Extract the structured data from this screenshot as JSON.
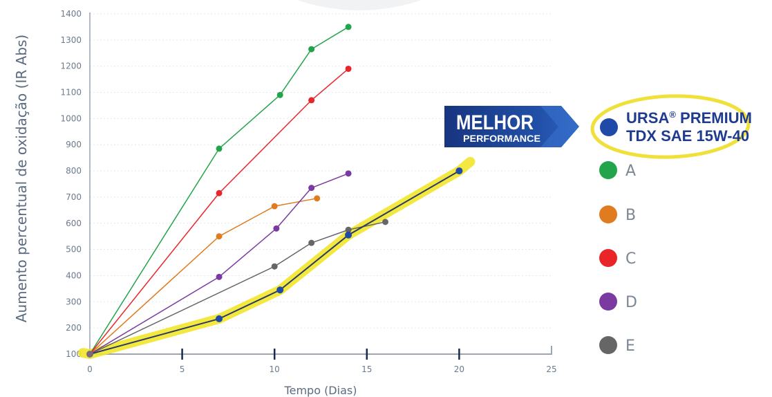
{
  "chart_data": {
    "type": "line",
    "xlabel": "Tempo (Dias)",
    "ylabel": "Aumento percentual de oxidação (IR Abs)",
    "xlim": [
      0,
      25
    ],
    "ylim": [
      100,
      1400
    ],
    "x_ticks": [
      "0",
      "5",
      "10",
      "15",
      "20",
      "25"
    ],
    "y_ticks": [
      "100",
      "200",
      "300",
      "400",
      "500",
      "600",
      "700",
      "800",
      "900",
      "1000",
      "1100",
      "1200",
      "1300",
      "1400"
    ],
    "grid": "horizontal-dotted",
    "legend_position": "right",
    "series": [
      {
        "name": "URSA® PREMIUM TDX SAE 15W-40",
        "color": "#1f4aa8",
        "highlight": "#f2e62a",
        "points": [
          [
            0,
            100
          ],
          [
            7,
            235
          ],
          [
            10.3,
            345
          ],
          [
            14,
            555
          ],
          [
            20,
            800
          ]
        ]
      },
      {
        "name": "A",
        "color": "#22a54a",
        "points": [
          [
            0,
            100
          ],
          [
            7,
            885
          ],
          [
            10.3,
            1090
          ],
          [
            12,
            1265
          ],
          [
            14,
            1350
          ]
        ]
      },
      {
        "name": "B",
        "color": "#e07b1f",
        "points": [
          [
            0,
            100
          ],
          [
            7,
            550
          ],
          [
            10,
            665
          ],
          [
            12.3,
            695
          ]
        ]
      },
      {
        "name": "C",
        "color": "#e8262a",
        "points": [
          [
            0,
            100
          ],
          [
            7,
            715
          ],
          [
            12,
            1070
          ],
          [
            14,
            1190
          ]
        ]
      },
      {
        "name": "D",
        "color": "#7b3aa0",
        "points": [
          [
            0,
            100
          ],
          [
            7,
            395
          ],
          [
            10.1,
            580
          ],
          [
            12,
            735
          ],
          [
            14,
            790
          ]
        ]
      },
      {
        "name": "E",
        "color": "#666666",
        "points": [
          [
            0,
            100
          ],
          [
            10,
            435
          ],
          [
            12,
            525
          ],
          [
            14,
            575
          ],
          [
            16,
            605
          ]
        ]
      }
    ]
  },
  "legend": {
    "ursa_line1": "URSA",
    "ursa_reg": "®",
    "ursa_line1_rest": " PREMIUM",
    "ursa_line2": "TDX SAE 15W-40",
    "a": "A",
    "b": "B",
    "c": "C",
    "d": "D",
    "e": "E"
  },
  "badge": {
    "line1": "MELHOR",
    "line2": "PERFORMANCE",
    "color": "#1f3f8f"
  }
}
